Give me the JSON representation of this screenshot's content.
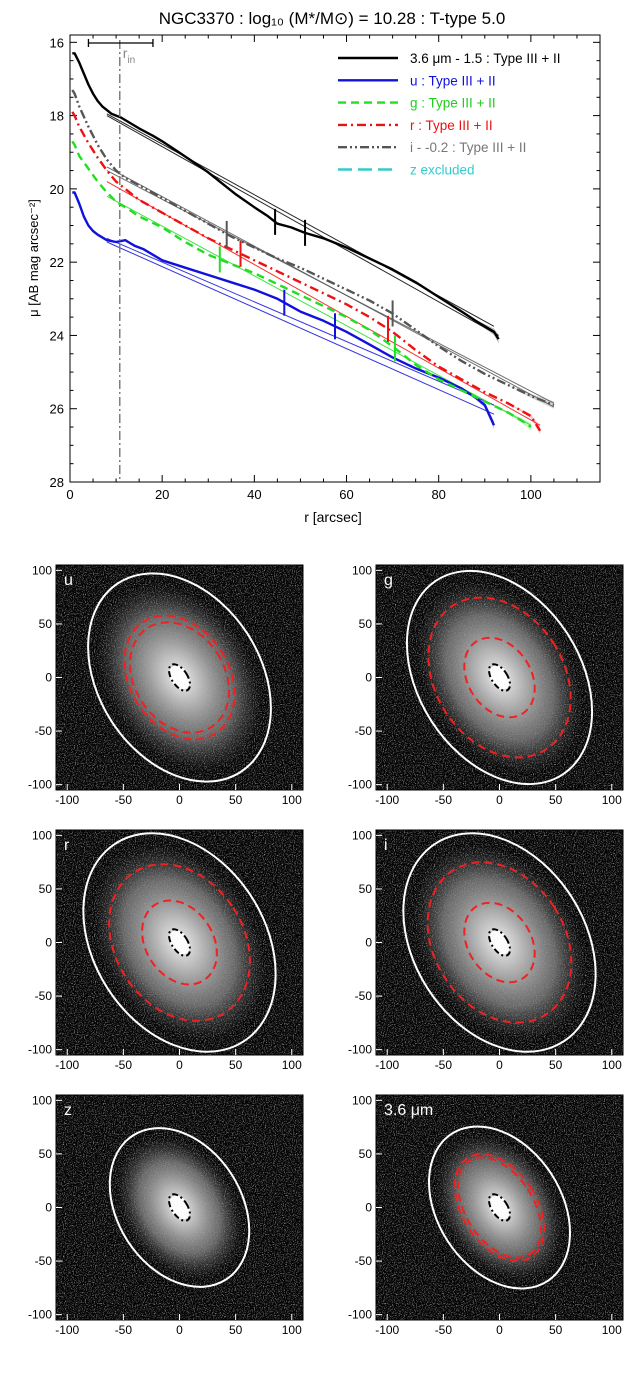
{
  "chart_data": [
    {
      "type": "line",
      "title": "NGC3370 : log₁₀ (M*/M⊙) = 10.28 : T-type 5.0",
      "xlabel": "r [arcsec]",
      "ylabel": "μ [AB mag arcsec⁻²]",
      "xlim": [
        0,
        115
      ],
      "ylim": [
        28,
        15.8
      ],
      "y_inverted": true,
      "xticks": [
        "0",
        "20",
        "40",
        "60",
        "80",
        "100"
      ],
      "yticks": [
        "16",
        "18",
        "20",
        "22",
        "24",
        "26",
        "28"
      ],
      "annotation": {
        "label": "r",
        "subscript": "in",
        "r_in": 10.8,
        "bar": [
          4,
          18
        ]
      },
      "legend_position": "top-right",
      "series": [
        {
          "name": "3.6 μm - 1.5 : Type III + II",
          "color": "#000000",
          "dash": "solid",
          "x": [
            0.5,
            1,
            2,
            3,
            4,
            5,
            6,
            7,
            8,
            9,
            10,
            11,
            13,
            15,
            18,
            20,
            23,
            26,
            30,
            33,
            36,
            40,
            43,
            45,
            48,
            51,
            55,
            60,
            65,
            70,
            75,
            80,
            85,
            88,
            90,
            92,
            93
          ],
          "y": [
            16.3,
            16.3,
            16.55,
            16.85,
            17.15,
            17.4,
            17.6,
            17.75,
            17.85,
            17.95,
            18.0,
            18.05,
            18.2,
            18.35,
            18.55,
            18.7,
            18.95,
            19.2,
            19.55,
            19.85,
            20.15,
            20.5,
            20.75,
            20.95,
            21.05,
            21.2,
            21.35,
            21.6,
            21.9,
            22.2,
            22.55,
            22.95,
            23.35,
            23.6,
            23.75,
            23.9,
            24.1
          ],
          "markers": [
            44.5,
            51
          ]
        },
        {
          "name": "u : Type III + II",
          "color": "#1111dd",
          "dash": "solid",
          "x": [
            0.5,
            1,
            2,
            3,
            4,
            5,
            6,
            8,
            10,
            12,
            14,
            16,
            18,
            20,
            25,
            30,
            35,
            40,
            45,
            50,
            55,
            60,
            65,
            70,
            75,
            80,
            85,
            88,
            90,
            92
          ],
          "y": [
            20.1,
            20.1,
            20.4,
            20.75,
            21.0,
            21.15,
            21.25,
            21.4,
            21.45,
            21.4,
            21.55,
            21.65,
            21.8,
            21.95,
            22.15,
            22.35,
            22.55,
            22.75,
            23.0,
            23.35,
            23.6,
            23.9,
            24.25,
            24.6,
            24.9,
            25.15,
            25.45,
            25.7,
            25.9,
            26.45
          ],
          "markers": [
            46.5,
            57.5
          ]
        },
        {
          "name": "g : Type III + II",
          "color": "#22dd22",
          "dash": "dashed",
          "x": [
            0.5,
            1,
            2,
            4,
            6,
            8,
            10,
            12,
            15,
            20,
            25,
            30,
            35,
            40,
            45,
            50,
            55,
            60,
            65,
            70,
            75,
            80,
            85,
            90,
            95,
            99,
            100
          ],
          "y": [
            18.7,
            18.8,
            19.1,
            19.45,
            19.8,
            20.1,
            20.35,
            20.5,
            20.75,
            21.05,
            21.45,
            21.8,
            22.05,
            22.3,
            22.6,
            22.9,
            23.2,
            23.5,
            23.85,
            24.3,
            24.8,
            25.2,
            25.5,
            25.8,
            26.1,
            26.4,
            26.5
          ],
          "markers": [
            32.5,
            70.5
          ]
        },
        {
          "name": "r : Type III + II",
          "color": "#ee1111",
          "dash": "dashdot",
          "x": [
            0.5,
            1,
            2,
            4,
            6,
            8,
            10,
            12,
            15,
            20,
            25,
            30,
            35,
            40,
            45,
            50,
            55,
            60,
            65,
            70,
            75,
            80,
            85,
            90,
            95,
            100,
            102
          ],
          "y": [
            17.9,
            18.0,
            18.3,
            18.75,
            19.15,
            19.5,
            19.8,
            20.0,
            20.3,
            20.65,
            21.0,
            21.35,
            21.65,
            21.95,
            22.25,
            22.55,
            22.85,
            23.15,
            23.5,
            23.9,
            24.4,
            24.85,
            25.2,
            25.55,
            25.85,
            26.2,
            26.6
          ],
          "markers": [
            37,
            69
          ]
        },
        {
          "name": "i - -0.2 : Type III + II",
          "color": "#555555",
          "dash": "dashdotdot",
          "x": [
            0.5,
            1,
            2,
            4,
            6,
            8,
            10,
            12,
            15,
            20,
            25,
            30,
            35,
            40,
            45,
            50,
            55,
            60,
            65,
            70,
            75,
            80,
            85,
            90,
            95,
            100,
            105
          ],
          "y": [
            17.3,
            17.4,
            17.75,
            18.3,
            18.8,
            19.2,
            19.5,
            19.7,
            19.9,
            20.25,
            20.6,
            20.95,
            21.3,
            21.6,
            21.9,
            22.15,
            22.45,
            22.75,
            23.05,
            23.4,
            23.85,
            24.3,
            24.7,
            25.05,
            25.35,
            25.65,
            25.9
          ],
          "markers": [
            34,
            70
          ]
        },
        {
          "name": "z excluded",
          "color": "#33cccc",
          "dash": "longdash",
          "x": [],
          "y": []
        }
      ],
      "fits": [
        {
          "color": "#000000",
          "from": [
            8,
            18.0
          ],
          "to": [
            93,
            24.0
          ]
        },
        {
          "color": "#000000",
          "from": [
            8,
            17.95
          ],
          "to": [
            92,
            23.75
          ]
        },
        {
          "color": "#555555",
          "from": [
            8,
            19.4
          ],
          "to": [
            105,
            25.95
          ]
        },
        {
          "color": "#555555",
          "from": [
            8,
            19.5
          ],
          "to": [
            105,
            25.85
          ]
        },
        {
          "color": "#ee1111",
          "from": [
            8,
            19.8
          ],
          "to": [
            102,
            26.45
          ]
        },
        {
          "color": "#22dd22",
          "from": [
            8,
            20.2
          ],
          "to": [
            100,
            26.45
          ]
        },
        {
          "color": "#1111dd",
          "from": [
            8,
            21.35
          ],
          "to": [
            92,
            25.9
          ]
        },
        {
          "color": "#1111dd",
          "from": [
            8,
            21.45
          ],
          "to": [
            92,
            26.15
          ]
        }
      ]
    },
    {
      "type": "image-panels",
      "tick_labels": [
        "-100",
        "-50",
        "0",
        "50",
        "100"
      ],
      "xlim": [
        -110,
        110
      ],
      "ylim": [
        -105,
        105
      ],
      "panels": [
        {
          "label": "u",
          "outer": {
            "a": 105,
            "b": 72
          },
          "breaks": [
            {
              "a": 62,
              "b": 44
            },
            {
              "a": 55,
              "b": 40
            }
          ],
          "inner": {
            "a": 10,
            "b": 7
          }
        },
        {
          "label": "g",
          "outer": {
            "a": 108,
            "b": 72
          },
          "breaks": [
            {
              "a": 80,
              "b": 57
            },
            {
              "a": 40,
              "b": 28
            }
          ],
          "inner": {
            "a": 10,
            "b": 7
          }
        },
        {
          "label": "r",
          "outer": {
            "a": 110,
            "b": 76
          },
          "breaks": [
            {
              "a": 78,
              "b": 57
            },
            {
              "a": 42,
              "b": 30
            }
          ],
          "inner": {
            "a": 10,
            "b": 7
          }
        },
        {
          "label": "i",
          "outer": {
            "a": 110,
            "b": 76
          },
          "breaks": [
            {
              "a": 80,
              "b": 58
            },
            {
              "a": 40,
              "b": 28
            }
          ],
          "inner": {
            "a": 10,
            "b": 7
          }
        },
        {
          "label": "z",
          "outer": {
            "a": 80,
            "b": 55
          },
          "breaks": [],
          "inner": {
            "a": 10,
            "b": 7
          }
        },
        {
          "label": "3.6 μm",
          "outer": {
            "a": 82,
            "b": 55
          },
          "breaks": [
            {
              "a": 55,
              "b": 33
            },
            {
              "a": 52,
              "b": 30
            }
          ],
          "inner": {
            "a": 10,
            "b": 7
          }
        }
      ]
    }
  ]
}
